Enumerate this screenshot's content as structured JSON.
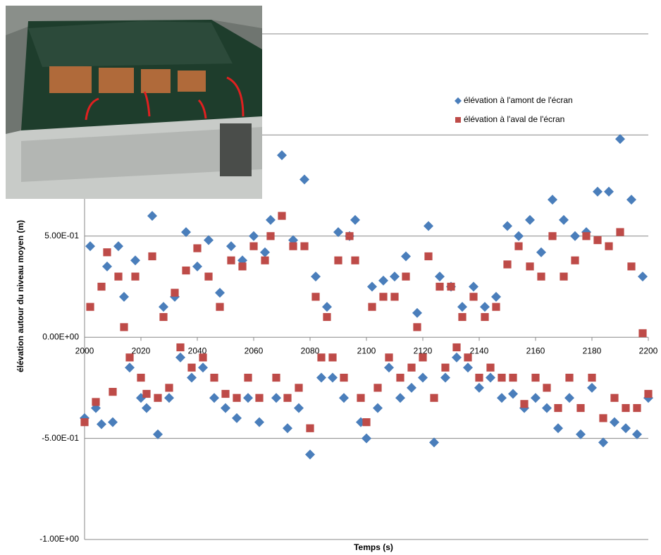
{
  "chart_data": {
    "type": "scatter",
    "x_label": "Temps (s)",
    "y_label": "élévation autour du niveau moyen (m)",
    "xlim": [
      2000,
      2200
    ],
    "xticks": [
      2000,
      2020,
      2040,
      2060,
      2080,
      2100,
      2120,
      2140,
      2160,
      2180,
      2200
    ],
    "ylim": [
      -1,
      1.5
    ],
    "yticks": [
      {
        "value": -1,
        "label": "-1.00E+00"
      },
      {
        "value": -0.5,
        "label": "-5.00E-01"
      },
      {
        "value": 0,
        "label": "0.00E+00"
      },
      {
        "value": 0.5,
        "label": "5.00E-01"
      },
      1,
      1.5
    ],
    "grid": true,
    "legend_position": "upper-right",
    "x": [
      2000,
      2002,
      2004,
      2006,
      2008,
      2010,
      2012,
      2014,
      2016,
      2018,
      2020,
      2022,
      2024,
      2026,
      2028,
      2030,
      2032,
      2034,
      2036,
      2038,
      2040,
      2042,
      2044,
      2046,
      2048,
      2050,
      2052,
      2054,
      2056,
      2058,
      2060,
      2062,
      2064,
      2066,
      2068,
      2070,
      2072,
      2074,
      2076,
      2078,
      2080,
      2082,
      2084,
      2086,
      2088,
      2090,
      2092,
      2094,
      2096,
      2098,
      2100,
      2102,
      2104,
      2106,
      2108,
      2110,
      2112,
      2114,
      2116,
      2118,
      2120,
      2122,
      2124,
      2126,
      2128,
      2130,
      2132,
      2134,
      2136,
      2138,
      2140,
      2142,
      2144,
      2146,
      2148,
      2150,
      2152,
      2154,
      2156,
      2158,
      2160,
      2162,
      2164,
      2166,
      2168,
      2170,
      2172,
      2174,
      2176,
      2178,
      2180,
      2182,
      2184,
      2186,
      2188,
      2190,
      2192,
      2194,
      2196,
      2198,
      2200
    ],
    "series": [
      {
        "name": "élévation à l'amont de l'écran",
        "color": "#4a7ebb",
        "marker": "diamond",
        "values": [
          -0.4,
          0.45,
          -0.35,
          -0.43,
          0.35,
          -0.42,
          0.45,
          0.2,
          -0.15,
          0.38,
          -0.3,
          -0.35,
          0.6,
          -0.48,
          0.15,
          -0.3,
          0.2,
          -0.1,
          0.52,
          -0.2,
          0.35,
          -0.15,
          0.48,
          -0.3,
          0.22,
          -0.35,
          0.45,
          -0.4,
          0.38,
          -0.3,
          0.5,
          -0.42,
          0.42,
          0.58,
          -0.3,
          0.9,
          -0.45,
          0.48,
          -0.35,
          0.78,
          -0.58,
          0.3,
          -0.2,
          0.15,
          -0.2,
          0.52,
          -0.3,
          0.5,
          0.58,
          -0.42,
          -0.5,
          0.25,
          -0.35,
          0.28,
          -0.15,
          0.3,
          -0.3,
          0.4,
          -0.25,
          0.12,
          -0.2,
          0.55,
          -0.52,
          0.3,
          -0.2,
          0.25,
          -0.1,
          0.15,
          -0.15,
          0.25,
          -0.25,
          0.15,
          -0.2,
          0.2,
          -0.3,
          0.55,
          -0.28,
          0.5,
          -0.35,
          0.58,
          -0.3,
          0.42,
          -0.35,
          0.68,
          -0.45,
          0.58,
          -0.3,
          0.5,
          -0.48,
          0.52,
          -0.25,
          0.72,
          -0.52,
          0.72,
          -0.42,
          0.98,
          -0.45,
          0.68,
          -0.48,
          0.3,
          -0.3
        ]
      },
      {
        "name": "élévation à l'aval de l'écran",
        "color": "#be4b48",
        "marker": "square",
        "values": [
          -0.42,
          0.15,
          -0.32,
          0.25,
          0.42,
          -0.27,
          0.3,
          0.05,
          -0.1,
          0.3,
          -0.2,
          -0.28,
          0.4,
          -0.3,
          0.1,
          -0.25,
          0.22,
          -0.05,
          0.33,
          -0.15,
          0.44,
          -0.1,
          0.3,
          -0.2,
          0.15,
          -0.28,
          0.38,
          -0.3,
          0.35,
          -0.2,
          0.45,
          -0.3,
          0.38,
          0.5,
          -0.2,
          0.6,
          -0.3,
          0.45,
          -0.25,
          0.45,
          -0.45,
          0.2,
          -0.1,
          0.1,
          -0.1,
          0.38,
          -0.2,
          0.5,
          0.38,
          -0.3,
          -0.42,
          0.15,
          -0.25,
          0.2,
          -0.1,
          0.2,
          -0.2,
          0.3,
          -0.15,
          0.05,
          -0.1,
          0.4,
          -0.3,
          0.25,
          -0.15,
          0.25,
          -0.05,
          0.1,
          -0.1,
          0.2,
          -0.2,
          0.1,
          -0.15,
          0.15,
          -0.2,
          0.36,
          -0.2,
          0.45,
          -0.33,
          0.35,
          -0.2,
          0.3,
          -0.25,
          0.5,
          -0.35,
          0.3,
          -0.2,
          0.38,
          -0.35,
          0.5,
          -0.2,
          0.48,
          -0.4,
          0.45,
          -0.3,
          0.52,
          -0.35,
          0.35,
          -0.35,
          0.02,
          -0.28
        ]
      }
    ]
  }
}
